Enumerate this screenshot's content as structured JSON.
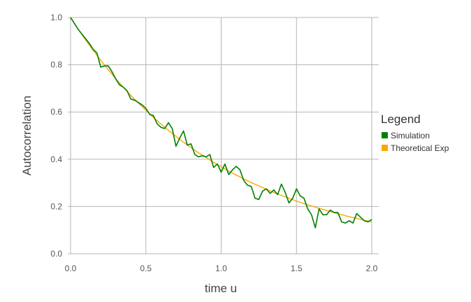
{
  "chart_data": {
    "type": "line",
    "title": "",
    "xlabel": "time u",
    "ylabel": "Autocorrelation",
    "xlim": [
      0,
      2
    ],
    "ylim": [
      0,
      1
    ],
    "x_ticks": [
      "0.0",
      "0.5",
      "1.0",
      "1.5",
      "2.0"
    ],
    "y_ticks": [
      "0.0",
      "0.2",
      "0.4",
      "0.6",
      "0.8",
      "1.0"
    ],
    "grid": true,
    "legend": {
      "title": "Legend",
      "placement": "right",
      "entries": [
        "Simulation",
        "Theoretical Exp"
      ]
    },
    "series": [
      {
        "name": "Simulation",
        "color": "#008000",
        "x": [
          0.0,
          0.025,
          0.05,
          0.075,
          0.1,
          0.125,
          0.15,
          0.175,
          0.2,
          0.225,
          0.25,
          0.275,
          0.3,
          0.325,
          0.35,
          0.375,
          0.4,
          0.425,
          0.45,
          0.475,
          0.5,
          0.525,
          0.55,
          0.575,
          0.6,
          0.625,
          0.65,
          0.675,
          0.7,
          0.725,
          0.75,
          0.775,
          0.8,
          0.825,
          0.85,
          0.875,
          0.9,
          0.925,
          0.95,
          0.975,
          1.0,
          1.025,
          1.05,
          1.075,
          1.1,
          1.125,
          1.15,
          1.175,
          1.2,
          1.225,
          1.25,
          1.275,
          1.3,
          1.325,
          1.35,
          1.375,
          1.4,
          1.425,
          1.45,
          1.475,
          1.5,
          1.525,
          1.55,
          1.575,
          1.6,
          1.625,
          1.65,
          1.675,
          1.7,
          1.725,
          1.75,
          1.775,
          1.8,
          1.825,
          1.85,
          1.875,
          1.9,
          1.925,
          1.95,
          1.975,
          2.0
        ],
        "y": [
          1.0,
          0.975,
          0.95,
          0.93,
          0.91,
          0.89,
          0.865,
          0.85,
          0.79,
          0.795,
          0.795,
          0.77,
          0.74,
          0.715,
          0.705,
          0.69,
          0.655,
          0.65,
          0.64,
          0.63,
          0.615,
          0.59,
          0.585,
          0.55,
          0.535,
          0.53,
          0.555,
          0.53,
          0.455,
          0.49,
          0.52,
          0.46,
          0.465,
          0.42,
          0.41,
          0.415,
          0.41,
          0.42,
          0.365,
          0.38,
          0.345,
          0.38,
          0.335,
          0.355,
          0.37,
          0.355,
          0.31,
          0.29,
          0.285,
          0.235,
          0.23,
          0.265,
          0.275,
          0.255,
          0.27,
          0.25,
          0.295,
          0.26,
          0.215,
          0.235,
          0.275,
          0.245,
          0.235,
          0.19,
          0.165,
          0.11,
          0.19,
          0.165,
          0.165,
          0.185,
          0.175,
          0.175,
          0.135,
          0.13,
          0.14,
          0.13,
          0.17,
          0.155,
          0.14,
          0.135,
          0.145
        ]
      },
      {
        "name": "Theoretical Exp",
        "color": "#FFA500",
        "x": [
          0.0,
          0.05,
          0.1,
          0.15,
          0.2,
          0.25,
          0.3,
          0.35,
          0.4,
          0.45,
          0.5,
          0.55,
          0.6,
          0.65,
          0.7,
          0.75,
          0.8,
          0.85,
          0.9,
          0.95,
          1.0,
          1.05,
          1.1,
          1.15,
          1.2,
          1.25,
          1.3,
          1.35,
          1.4,
          1.45,
          1.5,
          1.55,
          1.6,
          1.65,
          1.7,
          1.75,
          1.8,
          1.85,
          1.9,
          1.95,
          2.0
        ],
        "y": [
          1.0,
          0.951,
          0.905,
          0.861,
          0.819,
          0.779,
          0.741,
          0.705,
          0.67,
          0.638,
          0.607,
          0.577,
          0.549,
          0.522,
          0.497,
          0.472,
          0.449,
          0.427,
          0.407,
          0.387,
          0.368,
          0.35,
          0.333,
          0.317,
          0.301,
          0.287,
          0.273,
          0.259,
          0.247,
          0.235,
          0.223,
          0.212,
          0.202,
          0.192,
          0.183,
          0.174,
          0.165,
          0.157,
          0.15,
          0.142,
          0.135
        ]
      }
    ]
  }
}
